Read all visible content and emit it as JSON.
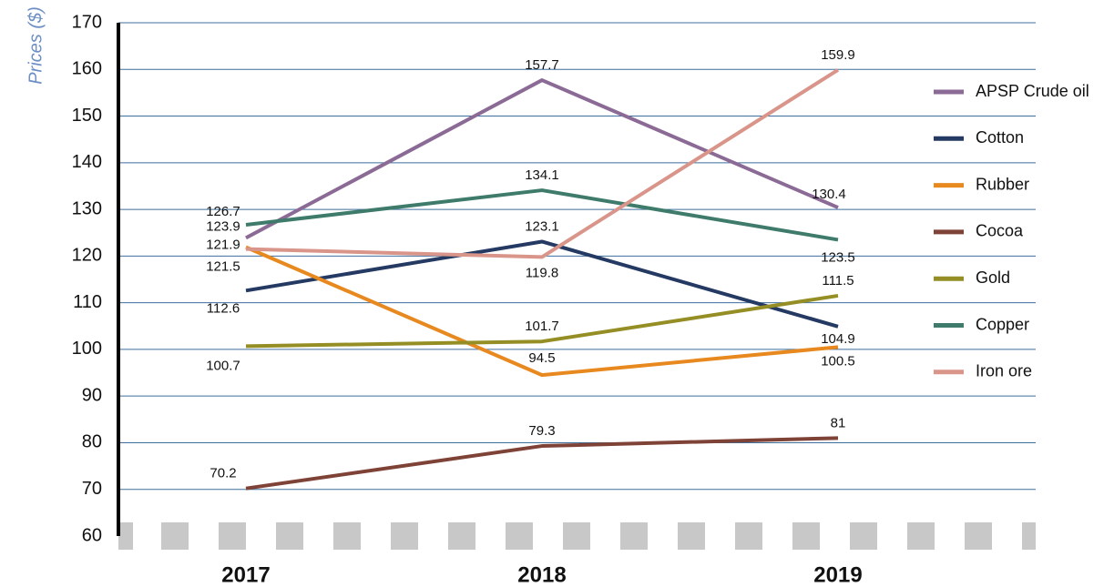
{
  "chart_data": {
    "type": "line",
    "y_label": "Prices ($)",
    "categories": [
      "2017",
      "2018",
      "2019"
    ],
    "series": [
      {
        "name": "APSP Crude oil",
        "color": "#8b6a96",
        "values": [
          123.9,
          157.7,
          130.4
        ]
      },
      {
        "name": "Cotton",
        "color": "#243a63",
        "values": [
          112.6,
          123.1,
          104.9
        ]
      },
      {
        "name": "Rubber",
        "color": "#e8891f",
        "values": [
          121.9,
          94.5,
          100.5
        ]
      },
      {
        "name": "Cocoa",
        "color": "#7f4236",
        "values": [
          70.2,
          79.3,
          81
        ]
      },
      {
        "name": "Gold",
        "color": "#948e24",
        "values": [
          100.7,
          101.7,
          111.5
        ]
      },
      {
        "name": "Copper",
        "color": "#3f7b6b",
        "values": [
          126.7,
          134.1,
          123.5
        ]
      },
      {
        "name": "Iron ore",
        "color": "#d9958a",
        "values": [
          121.5,
          119.8,
          159.9
        ]
      }
    ],
    "ylim": [
      60,
      170
    ],
    "yticks": [
      60,
      70,
      80,
      90,
      100,
      110,
      120,
      130,
      140,
      150,
      160,
      170
    ],
    "grid": true,
    "legend": "right"
  }
}
